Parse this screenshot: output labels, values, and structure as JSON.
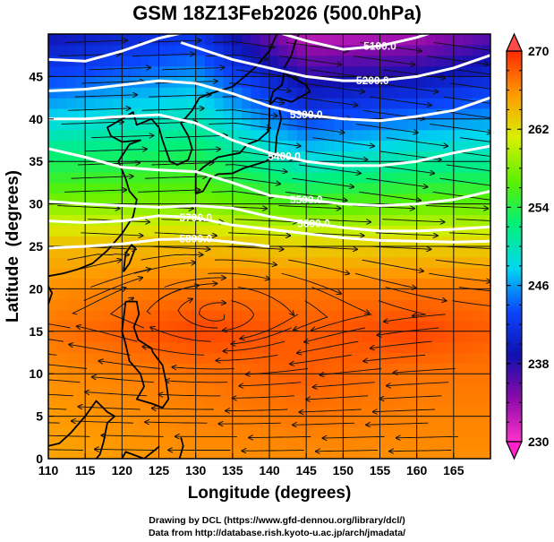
{
  "chart_data": {
    "type": "heatmap",
    "title": "GSM 18Z13Feb2026 (500.0hPa)",
    "xlabel": "Longitude (degrees)",
    "ylabel": "Latitude  (degrees)",
    "xlim": [
      110,
      170
    ],
    "ylim": [
      0,
      50
    ],
    "x_ticks": [
      "110",
      "115",
      "120",
      "125",
      "130",
      "135",
      "140",
      "145",
      "150",
      "155",
      "160",
      "165"
    ],
    "y_ticks": [
      "0",
      "5",
      "10",
      "15",
      "20",
      "25",
      "30",
      "35",
      "40",
      "45"
    ],
    "grid": true,
    "shading_variable": "temperature (K)",
    "colorbar": {
      "range": [
        230,
        270
      ],
      "tick_labels": [
        "270",
        "262",
        "254",
        "246",
        "238",
        "230"
      ],
      "extend": "both",
      "colors": [
        "#ff33cc",
        "#8a0aa8",
        "#1010b0",
        "#0a46ff",
        "#00d8f0",
        "#00f07a",
        "#5cf000",
        "#d8f000",
        "#ff9a00",
        "#ff2a00"
      ]
    },
    "temperature_field": [
      {
        "lat": 50,
        "profile": [
          {
            "lon": 110,
            "t": 239
          },
          {
            "lon": 130,
            "t": 242
          },
          {
            "lon": 145,
            "t": 232
          },
          {
            "lon": 160,
            "t": 233
          },
          {
            "lon": 170,
            "t": 236
          }
        ]
      },
      {
        "lat": 45,
        "profile": [
          {
            "lon": 110,
            "t": 243
          },
          {
            "lon": 130,
            "t": 246
          },
          {
            "lon": 145,
            "t": 238
          },
          {
            "lon": 160,
            "t": 239
          },
          {
            "lon": 170,
            "t": 241
          }
        ]
      },
      {
        "lat": 40,
        "profile": [
          {
            "lon": 110,
            "t": 248
          },
          {
            "lon": 130,
            "t": 250
          },
          {
            "lon": 145,
            "t": 243
          },
          {
            "lon": 160,
            "t": 245
          },
          {
            "lon": 170,
            "t": 246
          }
        ]
      },
      {
        "lat": 35,
        "profile": [
          {
            "lon": 110,
            "t": 253
          },
          {
            "lon": 130,
            "t": 254
          },
          {
            "lon": 145,
            "t": 249
          },
          {
            "lon": 160,
            "t": 251
          },
          {
            "lon": 170,
            "t": 251
          }
        ]
      },
      {
        "lat": 30,
        "profile": [
          {
            "lon": 110,
            "t": 258
          },
          {
            "lon": 130,
            "t": 258
          },
          {
            "lon": 145,
            "t": 256
          },
          {
            "lon": 160,
            "t": 257
          },
          {
            "lon": 170,
            "t": 257
          }
        ]
      },
      {
        "lat": 25,
        "profile": [
          {
            "lon": 110,
            "t": 264
          },
          {
            "lon": 130,
            "t": 264
          },
          {
            "lon": 145,
            "t": 263
          },
          {
            "lon": 160,
            "t": 263
          },
          {
            "lon": 170,
            "t": 263
          }
        ]
      },
      {
        "lat": 20,
        "profile": [
          {
            "lon": 110,
            "t": 266
          },
          {
            "lon": 130,
            "t": 267
          },
          {
            "lon": 145,
            "t": 267
          },
          {
            "lon": 160,
            "t": 267
          },
          {
            "lon": 170,
            "t": 267
          }
        ]
      },
      {
        "lat": 15,
        "profile": [
          {
            "lon": 110,
            "t": 267
          },
          {
            "lon": 130,
            "t": 269
          },
          {
            "lon": 145,
            "t": 268
          },
          {
            "lon": 160,
            "t": 269
          },
          {
            "lon": 170,
            "t": 268
          }
        ]
      },
      {
        "lat": 10,
        "profile": [
          {
            "lon": 110,
            "t": 266
          },
          {
            "lon": 130,
            "t": 267
          },
          {
            "lon": 145,
            "t": 268
          },
          {
            "lon": 160,
            "t": 267
          },
          {
            "lon": 170,
            "t": 267
          }
        ]
      },
      {
        "lat": 0,
        "profile": [
          {
            "lon": 110,
            "t": 265
          },
          {
            "lon": 130,
            "t": 266
          },
          {
            "lon": 145,
            "t": 266
          },
          {
            "lon": 160,
            "t": 266
          },
          {
            "lon": 170,
            "t": 266
          }
        ]
      }
    ],
    "height_contours": [
      {
        "label": "5100.0",
        "label_lon": 155,
        "points": [
          [
            140,
            50.5
          ],
          [
            145,
            49.2
          ],
          [
            150,
            48.2
          ],
          [
            155,
            48.6
          ],
          [
            160,
            49.6
          ],
          [
            165,
            51
          ]
        ]
      },
      {
        "label": "5200.0",
        "label_lon": 153,
        "points": [
          [
            110,
            47
          ],
          [
            115,
            46.8
          ],
          [
            120,
            48
          ],
          [
            125,
            49.5
          ],
          [
            130,
            50.5
          ]
        ]
      },
      {
        "label": "5200.0",
        "label_lon": 154,
        "points": [
          [
            128,
            49
          ],
          [
            135,
            47
          ],
          [
            140,
            46
          ],
          [
            145,
            45
          ],
          [
            150,
            44.5
          ],
          [
            155,
            44.5
          ],
          [
            160,
            45
          ],
          [
            165,
            46
          ],
          [
            170,
            47.5
          ]
        ]
      },
      {
        "label": "5300.0",
        "label_lon": 145,
        "points": [
          [
            110,
            43.3
          ],
          [
            115,
            43.5
          ],
          [
            120,
            44
          ],
          [
            125,
            44.5
          ],
          [
            130,
            44.2
          ],
          [
            135,
            43
          ],
          [
            140,
            41.5
          ],
          [
            145,
            40.5
          ],
          [
            150,
            40
          ],
          [
            155,
            39.8
          ],
          [
            160,
            40.3
          ],
          [
            165,
            41
          ],
          [
            170,
            42.5
          ]
        ]
      },
      {
        "label": "5400.0",
        "label_lon": 142,
        "points": [
          [
            110,
            40
          ],
          [
            115,
            40
          ],
          [
            120,
            40.3
          ],
          [
            125,
            40.5
          ],
          [
            130,
            39.5
          ],
          [
            135,
            37.5
          ],
          [
            140,
            36
          ],
          [
            145,
            35
          ],
          [
            150,
            34.5
          ],
          [
            155,
            34.5
          ],
          [
            160,
            35
          ],
          [
            165,
            36
          ],
          [
            170,
            36.8
          ]
        ]
      },
      {
        "label": "5500.0",
        "label_lon": 145,
        "points": [
          [
            110,
            36.5
          ],
          [
            115,
            35.5
          ],
          [
            120,
            34.3
          ],
          [
            125,
            34
          ],
          [
            130,
            33.8
          ],
          [
            135,
            32.5
          ],
          [
            140,
            31
          ],
          [
            145,
            30.5
          ],
          [
            150,
            30
          ],
          [
            155,
            29.8
          ],
          [
            160,
            30
          ],
          [
            165,
            30.5
          ],
          [
            170,
            31.5
          ]
        ]
      },
      {
        "label": "5600.0",
        "label_lon": 146,
        "points": [
          [
            110,
            30.3
          ],
          [
            115,
            30
          ],
          [
            120,
            29.8
          ],
          [
            125,
            29.6
          ],
          [
            130,
            29.8
          ],
          [
            135,
            29.5
          ],
          [
            140,
            28.5
          ],
          [
            145,
            27.8
          ],
          [
            150,
            27.2
          ],
          [
            155,
            26.8
          ],
          [
            160,
            26.8
          ],
          [
            165,
            27
          ],
          [
            170,
            27.3
          ]
        ]
      },
      {
        "label": "5700.0",
        "label_lon": 130,
        "points": [
          [
            110,
            28
          ],
          [
            115,
            27.8
          ],
          [
            120,
            28
          ],
          [
            125,
            28.6
          ],
          [
            130,
            28.4
          ],
          [
            135,
            27.5
          ],
          [
            140,
            27
          ],
          [
            145,
            26.5
          ],
          [
            150,
            26
          ],
          [
            155,
            25.7
          ],
          [
            160,
            25.6
          ],
          [
            165,
            25.5
          ],
          [
            170,
            25.6
          ]
        ]
      },
      {
        "label": "5800.0",
        "label_lon": 130,
        "points": [
          [
            110,
            24.8
          ],
          [
            115,
            25
          ],
          [
            120,
            25.3
          ],
          [
            125,
            25.8
          ],
          [
            130,
            25.9
          ],
          [
            135,
            25.5
          ],
          [
            140,
            25
          ]
        ]
      }
    ],
    "streamline_flow": {
      "north_of_lat_25": "westerly",
      "anticyclone_center": {
        "lon": 133,
        "lat": 17
      }
    }
  },
  "credits": {
    "line1": "Drawing by DCL (https://www.gfd-dennou.org/library/dcl/)",
    "line2": "Data from http://database.rish.kyoto-u.ac.jp/arch/jmadata/"
  }
}
